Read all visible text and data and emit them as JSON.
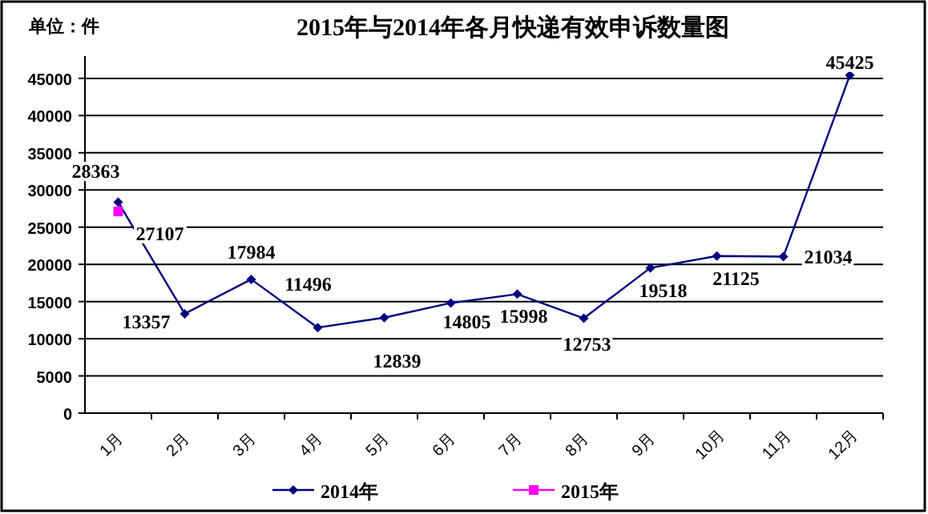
{
  "chart_data": {
    "type": "line",
    "title": "2015年与2014年各月快递有效申诉数量图",
    "annotations": [
      "单位：件"
    ],
    "categories": [
      "1月",
      "2月",
      "3月",
      "4月",
      "5月",
      "6月",
      "7月",
      "8月",
      "9月",
      "10月",
      "11月",
      "12月"
    ],
    "series": [
      {
        "name": "2014年",
        "color": "#000080",
        "marker": "diamond",
        "values": [
          28363,
          13357,
          17984,
          11496,
          12839,
          14805,
          15998,
          12753,
          19518,
          21125,
          21034,
          45425
        ]
      },
      {
        "name": "2015年",
        "color": "#ff00ff",
        "marker": "square",
        "values": [
          27107,
          null,
          null,
          null,
          null,
          null,
          null,
          null,
          null,
          null,
          null,
          null
        ]
      }
    ],
    "ylim": [
      0,
      48000
    ],
    "yticks": [
      0,
      5000,
      10000,
      15000,
      20000,
      25000,
      30000,
      35000,
      40000,
      45000
    ],
    "grid": "y",
    "legend": "bottom",
    "data_labels": true
  }
}
